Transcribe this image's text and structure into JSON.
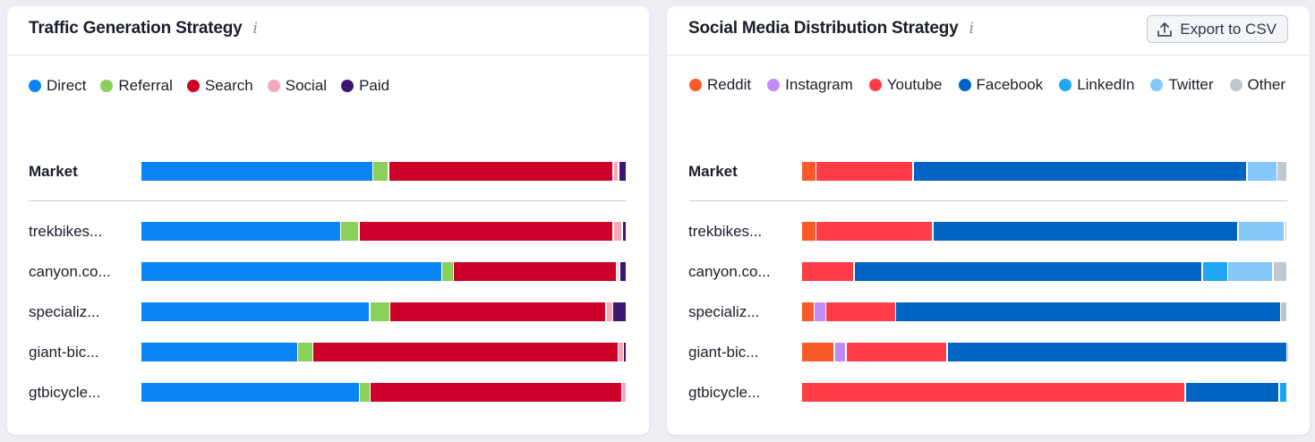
{
  "colors": {
    "Direct": "#0a84f5",
    "Referral": "#8bd05a",
    "Search": "#cc0029",
    "Social": "#f7a8b8",
    "Paid": "#3d1572",
    "Reddit": "#fb5a2b",
    "Instagram": "#c38bf8",
    "Youtube": "#ff3d47",
    "Facebook": "#0064c4",
    "LinkedIn": "#1fa6f3",
    "Twitter": "#85c7fb",
    "Other": "#c2c6cf"
  },
  "traffic": {
    "title": "Traffic Generation Strategy",
    "info": "i",
    "legend": [
      "Direct",
      "Referral",
      "Search",
      "Social",
      "Paid"
    ]
  },
  "social": {
    "title": "Social Media Distribution Strategy",
    "info": "i",
    "export_label": "Export to CSV",
    "legend": [
      "Reddit",
      "Instagram",
      "Youtube",
      "Facebook",
      "LinkedIn",
      "Twitter",
      "Other"
    ]
  },
  "chart_data": [
    {
      "type": "bar",
      "stacked": true,
      "orientation": "horizontal",
      "title": "Traffic Generation Strategy",
      "categories": [
        "Market",
        "trekbikes...",
        "canyon.co...",
        "specializ...",
        "giant-bic...",
        "gtbicycle..."
      ],
      "series": [
        {
          "name": "Direct",
          "values": [
            47.7,
            41.1,
            61.9,
            47.1,
            32.3,
            45.0
          ]
        },
        {
          "name": "Referral",
          "values": [
            3.3,
            3.8,
            2.4,
            4.1,
            3.1,
            2.2
          ]
        },
        {
          "name": "Search",
          "values": [
            46.2,
            52.3,
            33.6,
            44.5,
            62.8,
            51.7
          ]
        },
        {
          "name": "Social",
          "values": [
            1.1,
            1.8,
            0.6,
            1.4,
            1.1,
            1.1
          ]
        },
        {
          "name": "Paid",
          "values": [
            1.7,
            1.0,
            1.5,
            2.9,
            0.7,
            0.0
          ]
        }
      ]
    },
    {
      "type": "bar",
      "stacked": true,
      "orientation": "horizontal",
      "title": "Social Media Distribution Strategy",
      "categories": [
        "Market",
        "trekbikes...",
        "canyon.co...",
        "specializ...",
        "giant-bic...",
        "gtbicycle..."
      ],
      "series": [
        {
          "name": "Reddit",
          "values": [
            3.0,
            3.0,
            0.0,
            2.6,
            6.8,
            0.0
          ]
        },
        {
          "name": "Instagram",
          "values": [
            0.0,
            0.0,
            0.0,
            2.4,
            2.4,
            0.0
          ]
        },
        {
          "name": "Youtube",
          "values": [
            20.0,
            24.0,
            10.8,
            14.4,
            20.8,
            79.0
          ]
        },
        {
          "name": "Facebook",
          "values": [
            68.7,
            62.8,
            71.7,
            79.2,
            69.9,
            19.3
          ]
        },
        {
          "name": "LinkedIn",
          "values": [
            0.0,
            0.0,
            5.2,
            0.0,
            0.0,
            1.7
          ]
        },
        {
          "name": "Twitter",
          "values": [
            6.1,
            9.6,
            9.3,
            0.0,
            0.0,
            0.0
          ]
        },
        {
          "name": "Other",
          "values": [
            2.2,
            0.6,
            3.0,
            1.4,
            0.1,
            0.0
          ]
        }
      ]
    }
  ]
}
